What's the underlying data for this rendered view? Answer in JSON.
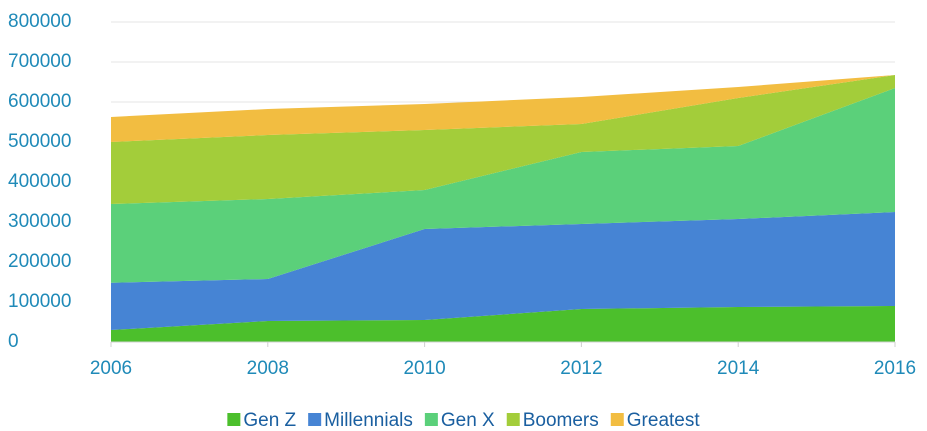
{
  "chart_data": {
    "type": "area",
    "stacked": true,
    "x": [
      2006,
      2008,
      2010,
      2012,
      2014,
      2016
    ],
    "series": [
      {
        "name": "Gen Z",
        "color": "#4cbf2c",
        "values": [
          30000,
          52500,
          55000,
          82500,
          87500,
          90000
        ]
      },
      {
        "name": "Millennials",
        "color": "#4684d4",
        "values": [
          118000,
          105000,
          227500,
          212500,
          220000,
          235000
        ]
      },
      {
        "name": "Gen X",
        "color": "#5bd07a",
        "values": [
          197000,
          200000,
          97500,
          180000,
          182500,
          310000
        ]
      },
      {
        "name": "Boomers",
        "color": "#a3cd3a",
        "values": [
          155000,
          160000,
          150000,
          70000,
          120000,
          32500
        ]
      },
      {
        "name": "Greatest",
        "color": "#f2bd41",
        "values": [
          62500,
          65000,
          65000,
          67500,
          27500,
          0
        ]
      }
    ],
    "xlim": [
      2006,
      2016
    ],
    "xticks": [
      2006,
      2008,
      2010,
      2012,
      2014,
      2016
    ],
    "ylim": [
      0,
      800000
    ],
    "yticks": [
      0,
      100000,
      200000,
      300000,
      400000,
      500000,
      600000,
      700000,
      800000
    ],
    "grid": true,
    "legend": "bottom"
  }
}
